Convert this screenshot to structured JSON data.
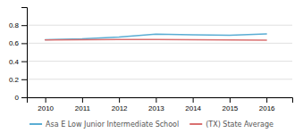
{
  "chart_data": {
    "type": "line",
    "x": [
      2010,
      2011,
      2012,
      2013,
      2014,
      2015,
      2016
    ],
    "series": [
      {
        "name": "Asa E Low Junior Intermediate School",
        "color": "#5aadd4",
        "values": [
          0.638,
          0.648,
          0.668,
          0.7,
          0.693,
          0.687,
          0.702
        ]
      },
      {
        "name": "(TX) State Average",
        "color": "#d97070",
        "values": [
          0.637,
          0.639,
          0.64,
          0.641,
          0.638,
          0.636,
          0.634
        ]
      }
    ],
    "xlim": [
      2009.5,
      2016.7
    ],
    "xticks": [
      2010,
      2011,
      2012,
      2013,
      2014,
      2015,
      2016
    ],
    "ylim": [
      0,
      1.0
    ],
    "yticks": [
      0,
      0.2,
      0.4,
      0.6,
      0.8
    ],
    "grid": true,
    "legend": "bottom"
  }
}
